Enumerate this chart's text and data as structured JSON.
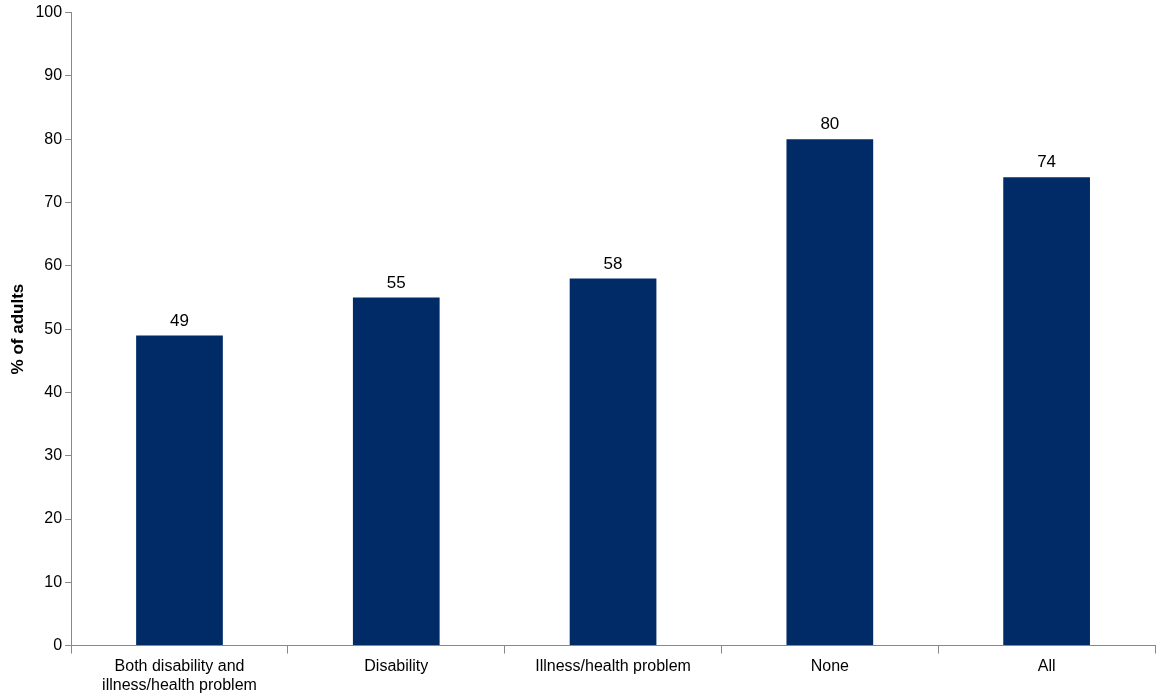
{
  "chart_data": {
    "type": "bar",
    "ylabel": "% of adults",
    "categories": [
      "Both disability and illness/health problem",
      "Disability",
      "Illness/health problem",
      "None",
      "All"
    ],
    "values": [
      49,
      55,
      58,
      80,
      74
    ],
    "color": "#002b66",
    "ylim": [
      0,
      100
    ],
    "yticks": [
      0,
      10,
      20,
      30,
      40,
      50,
      60,
      70,
      80,
      90,
      100
    ],
    "data_labels": true,
    "legend": false
  }
}
